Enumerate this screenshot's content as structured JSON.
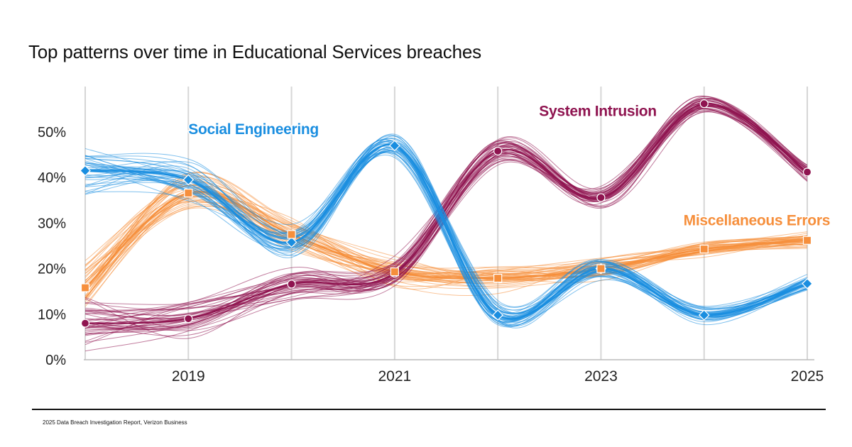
{
  "chart_data": {
    "type": "line",
    "title": "Top patterns over time in Educational Services breaches",
    "x": [
      2018,
      2019,
      2020,
      2021,
      2022,
      2023,
      2024,
      2025
    ],
    "x_tick_labels": [
      "2019",
      "2021",
      "2023",
      "2025"
    ],
    "x_tick_values": [
      2019,
      2021,
      2023,
      2025
    ],
    "y_tick_labels": [
      "0%",
      "10%",
      "20%",
      "30%",
      "40%",
      "50%"
    ],
    "y_tick_values": [
      0,
      10,
      20,
      30,
      40,
      50
    ],
    "ylim": [
      0,
      60
    ],
    "xlim": [
      2018,
      2025
    ],
    "grid": "vertical",
    "xlabel": "",
    "ylabel": "",
    "series": [
      {
        "name": "Social Engineering",
        "color": "#1a8ee0",
        "marker": "diamond",
        "values": [
          41.5,
          39.5,
          25.8,
          47.0,
          9.8,
          20.0,
          9.8,
          16.7
        ],
        "label_at": [
          2019,
          49.5
        ]
      },
      {
        "name": "System Intrusion",
        "color": "#8f1450",
        "marker": "circle",
        "values": [
          8.0,
          9.0,
          16.6,
          19.0,
          45.8,
          35.6,
          56.2,
          41.2
        ],
        "label_at": [
          2022.4,
          53.5
        ]
      },
      {
        "name": "Miscellaneous Errors",
        "color": "#f68f3c",
        "marker": "square",
        "values": [
          15.8,
          36.6,
          27.5,
          19.3,
          17.9,
          20.0,
          24.3,
          26.2
        ],
        "label_at": [
          2023.8,
          29.5
        ]
      }
    ]
  },
  "footer": {
    "source": "2025 Data Breach Investigation Report, Verizon Business"
  }
}
